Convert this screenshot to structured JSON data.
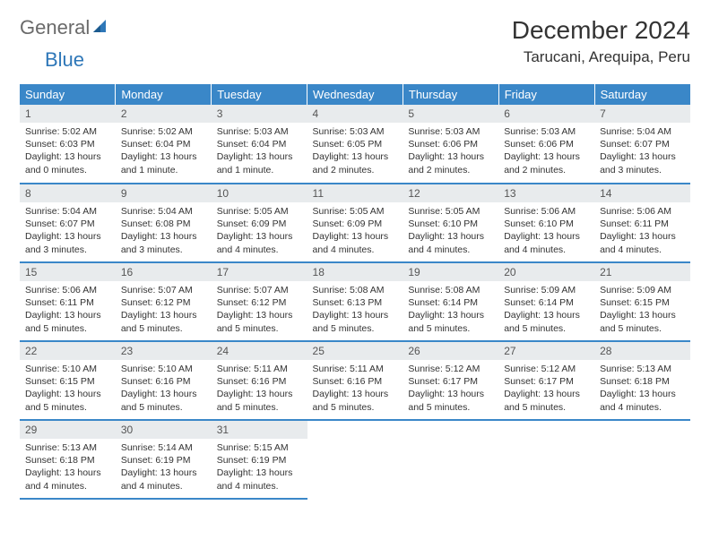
{
  "logo": {
    "general": "General",
    "blue": "Blue"
  },
  "title": "December 2024",
  "location": "Tarucani, Arequipa, Peru",
  "header_bg": "#3a87c8",
  "header_fg": "#ffffff",
  "daynum_bg": "#e8ebed",
  "border_color": "#3a87c8",
  "days_of_week": [
    "Sunday",
    "Monday",
    "Tuesday",
    "Wednesday",
    "Thursday",
    "Friday",
    "Saturday"
  ],
  "weeks": [
    [
      {
        "n": "1",
        "sr": "Sunrise: 5:02 AM",
        "ss": "Sunset: 6:03 PM",
        "dl": "Daylight: 13 hours and 0 minutes."
      },
      {
        "n": "2",
        "sr": "Sunrise: 5:02 AM",
        "ss": "Sunset: 6:04 PM",
        "dl": "Daylight: 13 hours and 1 minute."
      },
      {
        "n": "3",
        "sr": "Sunrise: 5:03 AM",
        "ss": "Sunset: 6:04 PM",
        "dl": "Daylight: 13 hours and 1 minute."
      },
      {
        "n": "4",
        "sr": "Sunrise: 5:03 AM",
        "ss": "Sunset: 6:05 PM",
        "dl": "Daylight: 13 hours and 2 minutes."
      },
      {
        "n": "5",
        "sr": "Sunrise: 5:03 AM",
        "ss": "Sunset: 6:06 PM",
        "dl": "Daylight: 13 hours and 2 minutes."
      },
      {
        "n": "6",
        "sr": "Sunrise: 5:03 AM",
        "ss": "Sunset: 6:06 PM",
        "dl": "Daylight: 13 hours and 2 minutes."
      },
      {
        "n": "7",
        "sr": "Sunrise: 5:04 AM",
        "ss": "Sunset: 6:07 PM",
        "dl": "Daylight: 13 hours and 3 minutes."
      }
    ],
    [
      {
        "n": "8",
        "sr": "Sunrise: 5:04 AM",
        "ss": "Sunset: 6:07 PM",
        "dl": "Daylight: 13 hours and 3 minutes."
      },
      {
        "n": "9",
        "sr": "Sunrise: 5:04 AM",
        "ss": "Sunset: 6:08 PM",
        "dl": "Daylight: 13 hours and 3 minutes."
      },
      {
        "n": "10",
        "sr": "Sunrise: 5:05 AM",
        "ss": "Sunset: 6:09 PM",
        "dl": "Daylight: 13 hours and 4 minutes."
      },
      {
        "n": "11",
        "sr": "Sunrise: 5:05 AM",
        "ss": "Sunset: 6:09 PM",
        "dl": "Daylight: 13 hours and 4 minutes."
      },
      {
        "n": "12",
        "sr": "Sunrise: 5:05 AM",
        "ss": "Sunset: 6:10 PM",
        "dl": "Daylight: 13 hours and 4 minutes."
      },
      {
        "n": "13",
        "sr": "Sunrise: 5:06 AM",
        "ss": "Sunset: 6:10 PM",
        "dl": "Daylight: 13 hours and 4 minutes."
      },
      {
        "n": "14",
        "sr": "Sunrise: 5:06 AM",
        "ss": "Sunset: 6:11 PM",
        "dl": "Daylight: 13 hours and 4 minutes."
      }
    ],
    [
      {
        "n": "15",
        "sr": "Sunrise: 5:06 AM",
        "ss": "Sunset: 6:11 PM",
        "dl": "Daylight: 13 hours and 5 minutes."
      },
      {
        "n": "16",
        "sr": "Sunrise: 5:07 AM",
        "ss": "Sunset: 6:12 PM",
        "dl": "Daylight: 13 hours and 5 minutes."
      },
      {
        "n": "17",
        "sr": "Sunrise: 5:07 AM",
        "ss": "Sunset: 6:12 PM",
        "dl": "Daylight: 13 hours and 5 minutes."
      },
      {
        "n": "18",
        "sr": "Sunrise: 5:08 AM",
        "ss": "Sunset: 6:13 PM",
        "dl": "Daylight: 13 hours and 5 minutes."
      },
      {
        "n": "19",
        "sr": "Sunrise: 5:08 AM",
        "ss": "Sunset: 6:14 PM",
        "dl": "Daylight: 13 hours and 5 minutes."
      },
      {
        "n": "20",
        "sr": "Sunrise: 5:09 AM",
        "ss": "Sunset: 6:14 PM",
        "dl": "Daylight: 13 hours and 5 minutes."
      },
      {
        "n": "21",
        "sr": "Sunrise: 5:09 AM",
        "ss": "Sunset: 6:15 PM",
        "dl": "Daylight: 13 hours and 5 minutes."
      }
    ],
    [
      {
        "n": "22",
        "sr": "Sunrise: 5:10 AM",
        "ss": "Sunset: 6:15 PM",
        "dl": "Daylight: 13 hours and 5 minutes."
      },
      {
        "n": "23",
        "sr": "Sunrise: 5:10 AM",
        "ss": "Sunset: 6:16 PM",
        "dl": "Daylight: 13 hours and 5 minutes."
      },
      {
        "n": "24",
        "sr": "Sunrise: 5:11 AM",
        "ss": "Sunset: 6:16 PM",
        "dl": "Daylight: 13 hours and 5 minutes."
      },
      {
        "n": "25",
        "sr": "Sunrise: 5:11 AM",
        "ss": "Sunset: 6:16 PM",
        "dl": "Daylight: 13 hours and 5 minutes."
      },
      {
        "n": "26",
        "sr": "Sunrise: 5:12 AM",
        "ss": "Sunset: 6:17 PM",
        "dl": "Daylight: 13 hours and 5 minutes."
      },
      {
        "n": "27",
        "sr": "Sunrise: 5:12 AM",
        "ss": "Sunset: 6:17 PM",
        "dl": "Daylight: 13 hours and 5 minutes."
      },
      {
        "n": "28",
        "sr": "Sunrise: 5:13 AM",
        "ss": "Sunset: 6:18 PM",
        "dl": "Daylight: 13 hours and 4 minutes."
      }
    ],
    [
      {
        "n": "29",
        "sr": "Sunrise: 5:13 AM",
        "ss": "Sunset: 6:18 PM",
        "dl": "Daylight: 13 hours and 4 minutes."
      },
      {
        "n": "30",
        "sr": "Sunrise: 5:14 AM",
        "ss": "Sunset: 6:19 PM",
        "dl": "Daylight: 13 hours and 4 minutes."
      },
      {
        "n": "31",
        "sr": "Sunrise: 5:15 AM",
        "ss": "Sunset: 6:19 PM",
        "dl": "Daylight: 13 hours and 4 minutes."
      },
      null,
      null,
      null,
      null
    ]
  ]
}
